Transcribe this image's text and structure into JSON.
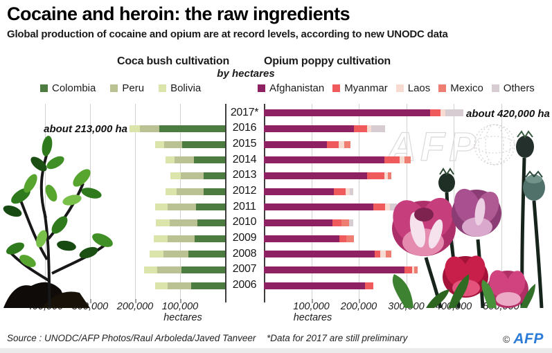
{
  "title": "Cocaine and heroin: the raw ingredients",
  "subtitle": "Global production of cocaine and opium are at record levels, according to new UNODC data",
  "unit_note": "by hectares",
  "source": "Source : UNODC/AFP Photos/Raul Arboleda/Javed Tanveer",
  "footnote": "*Data for 2017 are still preliminary",
  "copyright_symbol": "©",
  "afp_logo_text": "AFP",
  "watermark_text": "AFP",
  "colors": {
    "colombia": "#4c7c40",
    "peru": "#bac193",
    "bolivia": "#dbe5ab",
    "afghanistan": "#8e2161",
    "myanmar": "#ef5a5d",
    "laos": "#f8dbd0",
    "mexico": "#ee7e71",
    "others": "#d8ccd3",
    "afp_blue": "#2b7cd8",
    "gridline": "#d2d2d2",
    "axis": "#3d3d3d"
  },
  "chart_data": [
    {
      "type": "bar",
      "title": "Coca bush cultivation",
      "orientation": "horizontal-right-to-left",
      "unit": "hectares",
      "axis_unit": "hectares",
      "xlim": [
        0,
        446000
      ],
      "grid": true,
      "legend_position": "top",
      "categories": [
        "2017*",
        "2016",
        "2015",
        "2014",
        "2013",
        "2012",
        "2011",
        "2010",
        "2009",
        "2008",
        "2007",
        "2006"
      ],
      "series": [
        {
          "name": "Colombia",
          "color": "#4c7c40",
          "values": [
            null,
            146000,
            96000,
            69000,
            48000,
            48000,
            64000,
            62000,
            68000,
            81000,
            97000,
            76000
          ]
        },
        {
          "name": "Peru",
          "color": "#bac193",
          "values": [
            null,
            44000,
            40000,
            43000,
            50000,
            60000,
            64000,
            61000,
            60000,
            56000,
            54000,
            51000
          ]
        },
        {
          "name": "Bolivia",
          "color": "#dbe5ab",
          "values": [
            null,
            23000,
            20000,
            20000,
            23000,
            25000,
            27000,
            31000,
            31000,
            30000,
            29000,
            28000
          ]
        }
      ],
      "xticks": [
        {
          "label": "400,000",
          "value": 400000
        },
        {
          "label": "300,000",
          "value": 300000
        },
        {
          "label": "200,000",
          "value": 200000
        },
        {
          "label": "100,000",
          "value": 100000
        }
      ],
      "annotation": {
        "text": "about 213,000 ha",
        "category": "2016"
      }
    },
    {
      "type": "bar",
      "title": "Opium poppy cultivation",
      "orientation": "horizontal-left-to-right",
      "unit": "hectares",
      "axis_unit": "hectares",
      "xlim": [
        0,
        600000
      ],
      "grid": true,
      "legend_position": "top",
      "categories": [
        "2017*",
        "2016",
        "2015",
        "2014",
        "2013",
        "2012",
        "2011",
        "2010",
        "2009",
        "2008",
        "2007",
        "2006"
      ],
      "series": [
        {
          "name": "Afghanistan",
          "color": "#8e2161",
          "values": [
            350000,
            190000,
            133000,
            254000,
            218000,
            147000,
            230000,
            144000,
            159000,
            233000,
            297000,
            213000
          ]
        },
        {
          "name": "Myanmar",
          "color": "#ef5a5d",
          "values": [
            22000,
            27000,
            24000,
            32000,
            36000,
            26000,
            26000,
            20000,
            15000,
            13000,
            15000,
            17000
          ]
        },
        {
          "name": "Laos",
          "color": "#f8dbd0",
          "values": [
            10000,
            9000,
            12000,
            11000,
            8000,
            8000,
            10000,
            0,
            0,
            11000,
            5000,
            0
          ]
        },
        {
          "name": "Mexico",
          "color": "#ee7e71",
          "values": [
            0,
            0,
            14000,
            13000,
            7000,
            0,
            0,
            16000,
            16000,
            12000,
            7000,
            0
          ]
        },
        {
          "name": "Others",
          "color": "#d8ccd3",
          "values": [
            38000,
            30000,
            0,
            0,
            0,
            8000,
            15000,
            9000,
            0,
            0,
            0,
            0
          ]
        }
      ],
      "xticks": [
        {
          "label": "100,000",
          "value": 100000
        },
        {
          "label": "200,000",
          "value": 200000
        },
        {
          "label": "300,000",
          "value": 300000
        },
        {
          "label": "400,000",
          "value": 400000
        },
        {
          "label": "500,000",
          "value": 500000
        }
      ],
      "annotation": {
        "text": "about 420,000 ha",
        "category": "2017*"
      }
    }
  ]
}
